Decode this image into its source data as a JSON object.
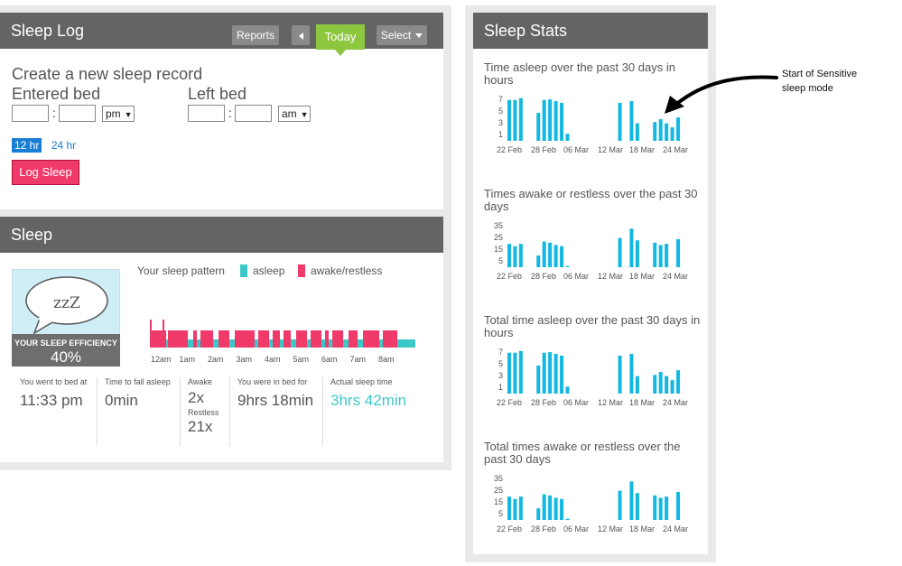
{
  "sleep_log": {
    "title": "Sleep Log",
    "reports_label": "Reports",
    "today_label": "Today",
    "select_label": "Select",
    "create_title": "Create a new sleep record",
    "entered_bed_label": "Entered bed",
    "left_bed_label": "Left bed",
    "entered_ampm": "pm",
    "left_ampm": "am",
    "hr12_label": "12 hr",
    "hr24_label": "24 hr",
    "log_button": "Log Sleep"
  },
  "sleep": {
    "title": "Sleep",
    "efficiency_label": "YOUR SLEEP EFFICIENCY",
    "efficiency_value": "40%",
    "zzz": "zzZ",
    "pattern_label": "Your sleep pattern",
    "asleep_label": "asleep",
    "awake_label": "awake/restless",
    "asleep_color": "#3cc8c8",
    "awake_color": "#f03a6a",
    "time_labels": [
      "12am",
      "1am",
      "2am",
      "3am",
      "4am",
      "5am",
      "6am",
      "7am",
      "8am"
    ],
    "stats": {
      "bed_at_label": "You went to bed at",
      "bed_at_value": "11:33 pm",
      "fall_asleep_label": "Time to fall asleep",
      "fall_asleep_value": "0min",
      "awake_label": "Awake",
      "awake_value": "2x",
      "restless_label": "Restless",
      "restless_value": "21x",
      "in_bed_label": "You were in bed for",
      "in_bed_value": "9hrs 18min",
      "actual_label": "Actual sleep time",
      "actual_value": "3hrs 42min"
    }
  },
  "sleep_stats": {
    "title": "Sleep Stats",
    "bar_color": "#12b8e0",
    "annotation_line1": "Start of Sensitive",
    "annotation_line2": "sleep mode"
  },
  "chart_data": [
    {
      "type": "bar",
      "title": "Time asleep over the past 30 days in hours",
      "yticks": [
        1,
        3,
        5,
        7
      ],
      "xticks": [
        "22 Feb",
        "28 Feb",
        "06 Mar",
        "12 Mar",
        "18 Mar",
        "24 Mar"
      ],
      "values": [
        7,
        7,
        7.3,
        0,
        0,
        4.8,
        7,
        7.1,
        6.8,
        6.5,
        1.2,
        0,
        0,
        0,
        0,
        0,
        0,
        0,
        0,
        6.5,
        0,
        6.8,
        3,
        0,
        0,
        3.2,
        3.7,
        3,
        2.3,
        4
      ]
    },
    {
      "type": "bar",
      "title": "Times awake or restless over the past 30 days",
      "yticks": [
        5,
        15,
        25,
        35
      ],
      "xticks": [
        "22 Feb",
        "28 Feb",
        "06 Mar",
        "12 Mar",
        "18 Mar",
        "24 Mar"
      ],
      "values": [
        20,
        18,
        20,
        0,
        0,
        10,
        22,
        21,
        19,
        18,
        1,
        0,
        0,
        0,
        0,
        0,
        0,
        0,
        0,
        25,
        0,
        33,
        23,
        0,
        0,
        21,
        19,
        20,
        0,
        24
      ]
    },
    {
      "type": "bar",
      "title": "Total time asleep over the past 30 days in hours",
      "yticks": [
        1,
        3,
        5,
        7
      ],
      "xticks": [
        "22 Feb",
        "28 Feb",
        "06 Mar",
        "12 Mar",
        "18 Mar",
        "24 Mar"
      ],
      "values": [
        7,
        7,
        7.3,
        0,
        0,
        4.8,
        7,
        7.1,
        6.8,
        6.5,
        1.2,
        0,
        0,
        0,
        0,
        0,
        0,
        0,
        0,
        6.5,
        0,
        6.8,
        3,
        0,
        0,
        3.2,
        3.7,
        3,
        2.3,
        4
      ]
    },
    {
      "type": "bar",
      "title": "Total times awake or restless over the past 30 days",
      "yticks": [
        5,
        15,
        25,
        35
      ],
      "xticks": [
        "22 Feb",
        "28 Feb",
        "06 Mar",
        "12 Mar",
        "18 Mar",
        "24 Mar"
      ],
      "values": [
        20,
        18,
        20,
        0,
        0,
        10,
        22,
        21,
        19,
        18,
        1,
        0,
        0,
        0,
        0,
        0,
        0,
        0,
        0,
        25,
        0,
        33,
        23,
        0,
        0,
        21,
        19,
        20,
        0,
        24
      ]
    }
  ]
}
